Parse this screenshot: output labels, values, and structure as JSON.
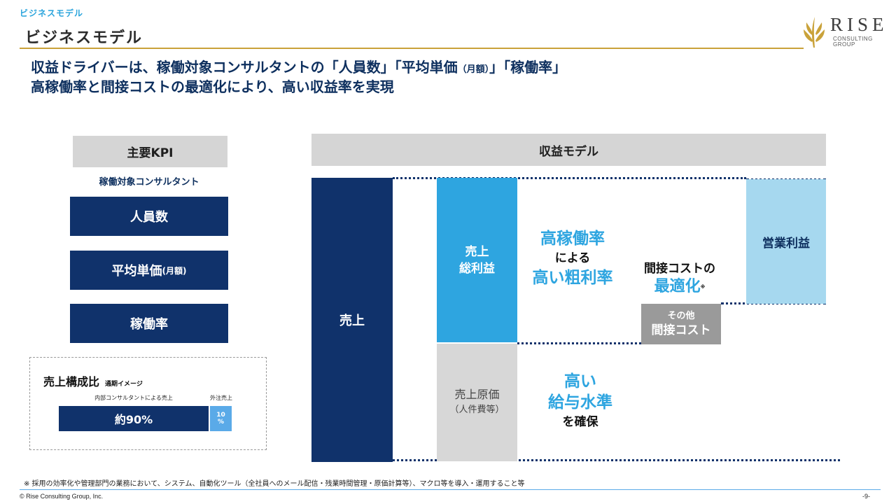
{
  "header": {
    "breadcrumb": "ビジネスモデル",
    "title": "ビジネスモデル",
    "logo": {
      "name": "RISE",
      "sub1": "CONSULTING",
      "sub2": "GROUP"
    }
  },
  "headline": {
    "line1_a": "収益ドライバーは、稼働対象コンサルタントの「人員数」「平均単価",
    "line1_small": "（月額）",
    "line1_b": "」「稼働率」",
    "line2": "高稼働率と間接コストの最適化により、高い収益率を実現"
  },
  "kpi": {
    "title": "主要KPI",
    "subtitle": "稼働対象コンサルタント",
    "items": [
      {
        "label": "人員数",
        "small": ""
      },
      {
        "label": "平均単価",
        "small": "(月額)"
      },
      {
        "label": "稼働率",
        "small": ""
      }
    ]
  },
  "ratio": {
    "title": "売上構成比",
    "note": "通期イメージ",
    "internal_label": "内部コンサルタントによる売上",
    "external_label": "外注売上",
    "internal_value": "約90%",
    "external_value_1": "10",
    "external_value_2": "%"
  },
  "model": {
    "title": "収益モデル",
    "sales": "売上",
    "gross_1": "売上",
    "gross_2": "総利益",
    "cogs_1": "売上原価",
    "cogs_2": "（人件費等）",
    "operating": "営業利益",
    "other_1": "その他",
    "other_2": "間接コスト",
    "util_1": "高稼働率",
    "util_2": "による",
    "util_3": "高い粗利率",
    "cost_1": "間接コストの",
    "cost_2": "最適化",
    "cost_mark": "※",
    "wage_1": "高い",
    "wage_2": "給与水準",
    "wage_3": "を確保"
  },
  "footer": {
    "note": "※ 採用の効率化や管理部門の業務において、システム、自動化ツール（全社員へのメール配信・残業時間管理・原価計算等）、マクロ等を導入・運用すること等",
    "copyright": "© Rise Consulting Group, Inc.",
    "page": "-9-"
  },
  "colors": {
    "navy": "#10326b",
    "blue": "#2ea5e0",
    "light_blue": "#a6d8ef",
    "gray": "#d7d7d7",
    "gold": "#c9a23a"
  }
}
